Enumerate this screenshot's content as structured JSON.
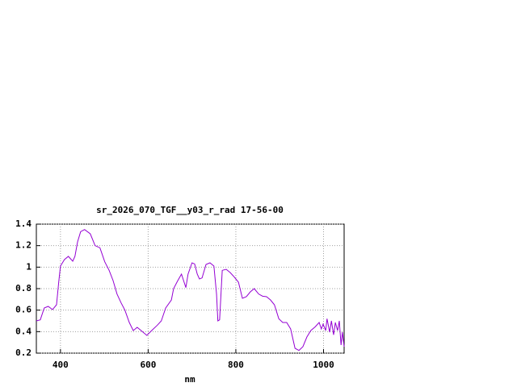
{
  "chart_data": {
    "type": "line",
    "title": "sr_2026_070_TGF__y03_r_rad 17-56-00",
    "xlabel": "nm",
    "x": [
      345,
      354,
      363,
      372,
      382,
      391,
      396,
      400,
      409,
      418,
      428,
      433,
      439,
      446,
      455,
      468,
      479,
      490,
      501,
      511,
      520,
      529,
      538,
      547,
      557,
      566,
      575,
      584,
      597,
      608,
      621,
      630,
      640,
      653,
      658,
      667,
      676,
      682,
      686,
      691,
      700,
      706,
      712,
      717,
      723,
      732,
      741,
      750,
      756,
      759,
      763,
      769,
      778,
      787,
      796,
      806,
      815,
      824,
      833,
      842,
      852,
      861,
      870,
      879,
      888,
      898,
      907,
      916,
      925,
      935,
      944,
      953,
      962,
      971,
      981,
      990,
      995,
      999,
      1005,
      1008,
      1014,
      1018,
      1023,
      1027,
      1032,
      1036,
      1040,
      1043,
      1047
    ],
    "values": [
      0.5,
      0.51,
      0.62,
      0.635,
      0.605,
      0.65,
      0.86,
      1.01,
      1.07,
      1.1,
      1.055,
      1.1,
      1.235,
      1.33,
      1.35,
      1.31,
      1.2,
      1.18,
      1.05,
      0.97,
      0.875,
      0.75,
      0.67,
      0.6,
      0.485,
      0.41,
      0.44,
      0.41,
      0.365,
      0.41,
      0.46,
      0.5,
      0.62,
      0.695,
      0.8,
      0.87,
      0.935,
      0.86,
      0.81,
      0.935,
      1.04,
      1.03,
      0.935,
      0.89,
      0.9,
      1.025,
      1.04,
      1.01,
      0.75,
      0.5,
      0.51,
      0.97,
      0.98,
      0.95,
      0.91,
      0.86,
      0.71,
      0.725,
      0.77,
      0.8,
      0.75,
      0.73,
      0.725,
      0.695,
      0.65,
      0.52,
      0.485,
      0.485,
      0.425,
      0.245,
      0.225,
      0.26,
      0.35,
      0.41,
      0.445,
      0.485,
      0.425,
      0.47,
      0.41,
      0.52,
      0.395,
      0.5,
      0.37,
      0.485,
      0.41,
      0.5,
      0.275,
      0.395,
      0.26
    ],
    "color": "#9400d3",
    "xlim": [
      345,
      1047
    ],
    "ylim": [
      0.2,
      1.4
    ],
    "xticks": [
      400,
      600,
      800,
      1000
    ],
    "yticks": [
      0.2,
      0.4,
      0.6,
      0.8,
      1,
      1.2,
      1.4
    ],
    "grid": true
  }
}
